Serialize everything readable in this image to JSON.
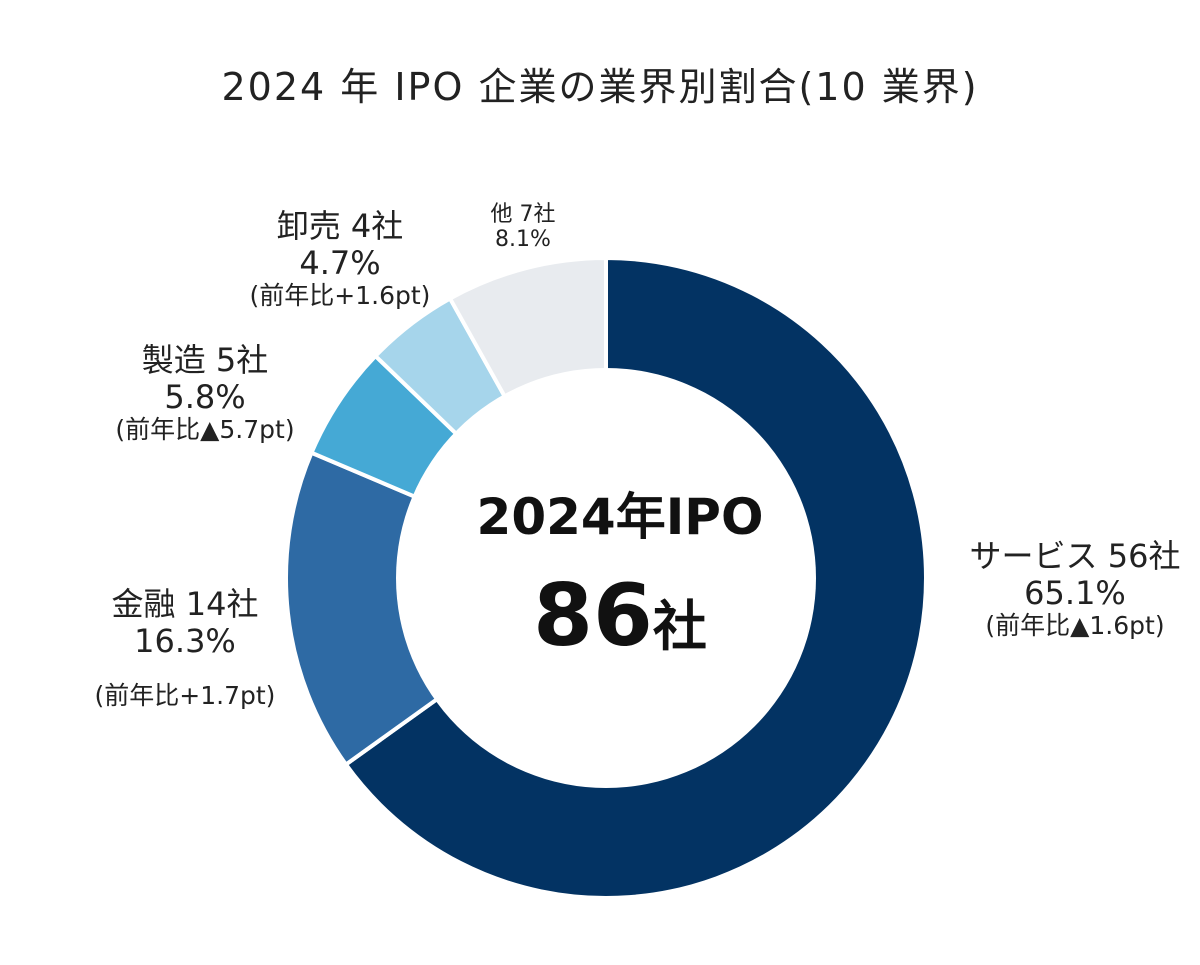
{
  "chart_data": {
    "type": "pie",
    "title": "2024 年 IPO 企業の業界別割合(10 業界)",
    "center": {
      "title": "2024年IPO",
      "value": "86",
      "unit": "社"
    },
    "slices": [
      {
        "name": "サービス",
        "count_label": "サービス 56社",
        "count": 56,
        "value": 65.1,
        "pct_label": "65.1%",
        "change_label": "(前年比▲1.6pt)",
        "color": "#033363"
      },
      {
        "name": "金融",
        "count_label": "金融 14社",
        "count": 14,
        "value": 16.3,
        "pct_label": "16.3%",
        "change_label": "(前年比+1.7pt)",
        "color": "#2e6aa4"
      },
      {
        "name": "製造",
        "count_label": "製造 5社",
        "count": 5,
        "value": 5.8,
        "pct_label": "5.8%",
        "change_label": "(前年比▲5.7pt)",
        "color": "#45a9d5"
      },
      {
        "name": "卸売",
        "count_label": "卸売 4社",
        "count": 4,
        "value": 4.7,
        "pct_label": "4.7%",
        "change_label": "(前年比+1.6pt)",
        "color": "#a6d5eb"
      },
      {
        "name": "他",
        "count_label": "他 7社",
        "count": 7,
        "value": 8.1,
        "pct_label": "8.1%",
        "change_label": "",
        "color": "#e8ebef"
      }
    ]
  }
}
